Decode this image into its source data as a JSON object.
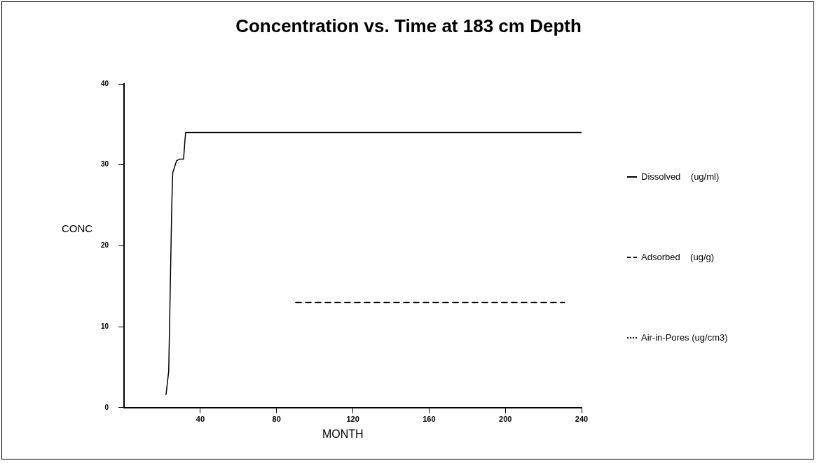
{
  "chart_data": {
    "type": "line",
    "title": "Concentration vs. Time at 183 cm Depth",
    "xlabel": "MONTH",
    "ylabel": "CONC",
    "xlim": [
      0,
      240
    ],
    "xticks": [
      40,
      80,
      120,
      160,
      200,
      240
    ],
    "ylim": [
      0,
      40
    ],
    "yticks": [
      0,
      10,
      20,
      30,
      40
    ],
    "grid": false,
    "legend": "right",
    "marker": "none",
    "series": [
      {
        "name": "Dissolved    (ug/ml)",
        "color": "#000000",
        "line_style": "solid",
        "x": [
          22,
          23.4,
          24,
          24.5,
          25,
          25.5,
          27.5,
          29,
          31.2,
          31.9,
          32.3,
          240
        ],
        "values": [
          1.6,
          4.5,
          12,
          18.5,
          25,
          29,
          30.5,
          30.7,
          30.7,
          33,
          34,
          34
        ]
      },
      {
        "name": "Adsorbed    (ug/g)",
        "color": "#000000",
        "line_style": "dashed",
        "x": [
          90,
          231
        ],
        "values": [
          13,
          13
        ]
      },
      {
        "name": "Air-in-Pores (ug/cm3)",
        "color": "#000000",
        "line_style": "dotted"
      }
    ]
  }
}
